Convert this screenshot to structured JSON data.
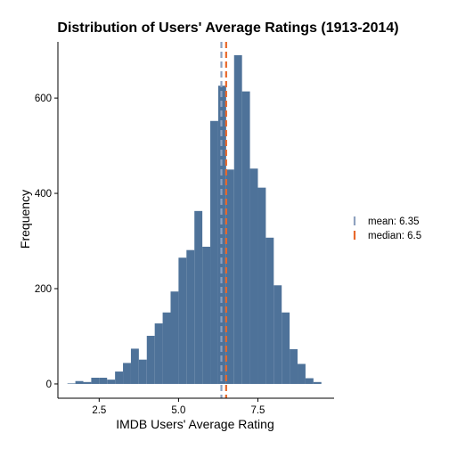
{
  "chart_data": {
    "type": "bar",
    "title": "Distribution of Users' Average Ratings (1913-2014)",
    "xlabel": "IMDB Users' Average Rating",
    "ylabel": "Frequency",
    "xlim": [
      1.2,
      9.9
    ],
    "ylim": [
      -30,
      718
    ],
    "bin_width": 0.25,
    "bars_fill": "#4e7299",
    "x_ticks": [
      {
        "value": 2.5,
        "label": "2.5"
      },
      {
        "value": 5.0,
        "label": "5.0"
      },
      {
        "value": 7.5,
        "label": "7.5"
      }
    ],
    "y_ticks": [
      {
        "value": 0,
        "label": "0"
      },
      {
        "value": 200,
        "label": "200"
      },
      {
        "value": 400,
        "label": "400"
      },
      {
        "value": 600,
        "label": "600"
      }
    ],
    "bins": [
      {
        "x0": 1.5,
        "count": 1
      },
      {
        "x0": 1.75,
        "count": 6
      },
      {
        "x0": 2.0,
        "count": 4
      },
      {
        "x0": 2.25,
        "count": 13
      },
      {
        "x0": 2.5,
        "count": 13
      },
      {
        "x0": 2.75,
        "count": 9
      },
      {
        "x0": 3.0,
        "count": 26
      },
      {
        "x0": 3.25,
        "count": 44
      },
      {
        "x0": 3.5,
        "count": 74
      },
      {
        "x0": 3.75,
        "count": 51
      },
      {
        "x0": 4.0,
        "count": 101
      },
      {
        "x0": 4.25,
        "count": 127
      },
      {
        "x0": 4.5,
        "count": 150
      },
      {
        "x0": 4.75,
        "count": 194
      },
      {
        "x0": 5.0,
        "count": 265
      },
      {
        "x0": 5.25,
        "count": 281
      },
      {
        "x0": 5.5,
        "count": 363
      },
      {
        "x0": 5.75,
        "count": 288
      },
      {
        "x0": 6.0,
        "count": 552
      },
      {
        "x0": 6.25,
        "count": 626
      },
      {
        "x0": 6.5,
        "count": 450
      },
      {
        "x0": 6.75,
        "count": 690
      },
      {
        "x0": 7.0,
        "count": 614
      },
      {
        "x0": 7.25,
        "count": 452
      },
      {
        "x0": 7.5,
        "count": 412
      },
      {
        "x0": 7.75,
        "count": 307
      },
      {
        "x0": 8.0,
        "count": 207
      },
      {
        "x0": 8.25,
        "count": 150
      },
      {
        "x0": 8.5,
        "count": 73
      },
      {
        "x0": 8.75,
        "count": 42
      },
      {
        "x0": 9.0,
        "count": 12
      },
      {
        "x0": 9.25,
        "count": 4
      }
    ],
    "reference_lines": [
      {
        "name": "mean: 6.35",
        "value": 6.35,
        "color": "#8ea1bf",
        "style": "dashed"
      },
      {
        "name": "median: 6.5",
        "value": 6.5,
        "color": "#e8692c",
        "style": "dashed"
      }
    ],
    "legend_position": "right",
    "grid": false
  }
}
